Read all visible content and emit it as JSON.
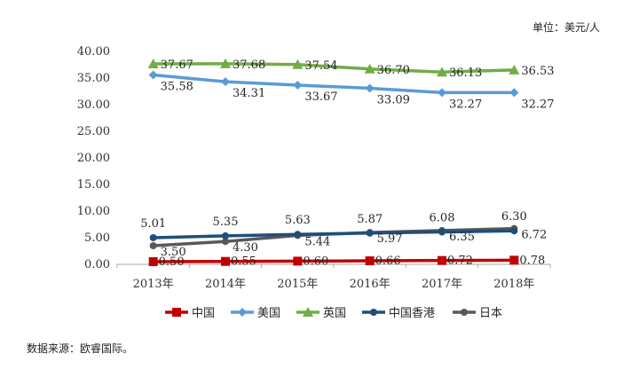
{
  "unit_label": "单位：美元/人",
  "source_label": "数据来源：欧睿国际。",
  "chart_data": {
    "type": "line",
    "categories": [
      "2013年",
      "2014年",
      "2015年",
      "2016年",
      "2017年",
      "2018年"
    ],
    "ylim": [
      0,
      40
    ],
    "yticks": [
      "0.00",
      "5.00",
      "10.00",
      "15.00",
      "20.00",
      "25.00",
      "30.00",
      "35.00",
      "40.00"
    ],
    "legend_position": "bottom",
    "grid": false,
    "series": [
      {
        "name": "中国",
        "values": [
          0.5,
          0.55,
          0.6,
          0.66,
          0.72,
          0.78
        ],
        "labels": [
          "0.50",
          "0.55",
          "0.60",
          "0.66",
          "0.72",
          "0.78"
        ],
        "color": "#c00000",
        "marker": "square"
      },
      {
        "name": "美国",
        "values": [
          35.58,
          34.31,
          33.67,
          33.09,
          32.27,
          32.27
        ],
        "labels": [
          "35.58",
          "34.31",
          "33.67",
          "33.09",
          "32.27",
          "32.27"
        ],
        "color": "#5b9bd5",
        "marker": "diamond"
      },
      {
        "name": "英国",
        "values": [
          37.67,
          37.68,
          37.54,
          36.7,
          36.13,
          36.53
        ],
        "labels": [
          "37.67",
          "37.68",
          "37.54",
          "36.70",
          "36.13",
          "36.53"
        ],
        "color": "#70ad47",
        "marker": "triangle"
      },
      {
        "name": "中国香港",
        "values": [
          5.01,
          5.35,
          5.63,
          5.87,
          6.08,
          6.3
        ],
        "labels": [
          "5.01",
          "5.35",
          "5.63",
          "5.87",
          "6.08",
          "6.30"
        ],
        "color": "#1f4e79",
        "marker": "circle"
      },
      {
        "name": "日本",
        "values": [
          3.5,
          4.3,
          5.44,
          5.97,
          6.35,
          6.72
        ],
        "labels": [
          "3.50",
          "4.30",
          "5.44",
          "5.97",
          "6.35",
          "6.72"
        ],
        "color": "#595959",
        "marker": "circle"
      }
    ]
  }
}
